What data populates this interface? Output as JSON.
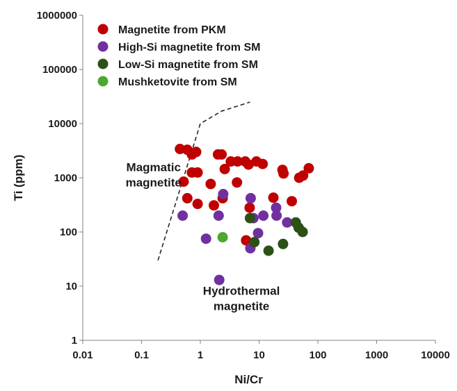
{
  "chart_data": {
    "type": "scatter",
    "title": "",
    "xlabel": "Ni/Cr",
    "ylabel": "Ti (ppm)",
    "xscale": "log",
    "yscale": "log",
    "xlim": [
      0.01,
      10000
    ],
    "ylim": [
      1,
      1000000
    ],
    "grid": false,
    "legend_position": "top-left",
    "x_ticks": [
      0.01,
      0.1,
      1,
      10,
      100,
      1000,
      10000
    ],
    "x_tick_labels": [
      "0.01",
      "0.1",
      "1",
      "10",
      "100",
      "1000",
      "10000"
    ],
    "y_ticks": [
      1,
      10,
      100,
      1000,
      10000,
      100000,
      1000000
    ],
    "y_tick_labels": [
      "1",
      "10",
      "100",
      "1000",
      "10000",
      "100000",
      "1000000"
    ],
    "series": [
      {
        "name": "Magnetite from PKM",
        "color": "#c00000",
        "points": [
          [
            0.45,
            3400
          ],
          [
            0.6,
            3300
          ],
          [
            0.72,
            2700
          ],
          [
            0.85,
            3000
          ],
          [
            0.52,
            850
          ],
          [
            0.72,
            1250
          ],
          [
            0.9,
            1250
          ],
          [
            0.6,
            420
          ],
          [
            0.9,
            330
          ],
          [
            1.7,
            310
          ],
          [
            2.4,
            420
          ],
          [
            1.5,
            770
          ],
          [
            2.0,
            2700
          ],
          [
            2.3,
            2700
          ],
          [
            2.6,
            1450
          ],
          [
            3.3,
            2000
          ],
          [
            4.3,
            2000
          ],
          [
            5.8,
            2000
          ],
          [
            6.6,
            1750
          ],
          [
            9.0,
            2000
          ],
          [
            11.5,
            1800
          ],
          [
            4.2,
            820
          ],
          [
            6.9,
            280
          ],
          [
            6.0,
            70
          ],
          [
            17.5,
            430
          ],
          [
            25.0,
            1400
          ],
          [
            26.0,
            1200
          ],
          [
            36.0,
            370
          ],
          [
            48.0,
            1000
          ],
          [
            56.0,
            1100
          ],
          [
            70.0,
            1500
          ]
        ]
      },
      {
        "name": "High-Si magnetite from SM",
        "color": "#7030a0",
        "points": [
          [
            0.5,
            200
          ],
          [
            1.25,
            75
          ],
          [
            2.05,
            200
          ],
          [
            2.45,
            500
          ],
          [
            2.1,
            13
          ],
          [
            7.2,
            420
          ],
          [
            8.0,
            180
          ],
          [
            7.1,
            50
          ],
          [
            9.6,
            95
          ],
          [
            11.8,
            200
          ],
          [
            19.5,
            280
          ],
          [
            19.8,
            200
          ],
          [
            30.0,
            150
          ]
        ]
      },
      {
        "name": "Low-Si magnetite from SM",
        "color": "#2d5016",
        "points": [
          [
            7.0,
            180
          ],
          [
            8.3,
            65
          ],
          [
            14.5,
            45
          ],
          [
            25.5,
            60
          ],
          [
            42.0,
            150
          ],
          [
            47.0,
            120
          ],
          [
            55.0,
            100
          ]
        ]
      },
      {
        "name": "Mushketovite from SM",
        "color": "#4ea72e",
        "points": [
          [
            2.4,
            80
          ]
        ]
      }
    ],
    "boundary_line": [
      [
        0.19,
        30
      ],
      [
        1.0,
        10000
      ],
      [
        2.3,
        17000
      ],
      [
        7.0,
        25000
      ]
    ],
    "annotations": [
      {
        "lines": [
          "Magmatic",
          "magnetite"
        ],
        "x": 0.16,
        "y": 1050
      },
      {
        "lines": [
          "Hydrothermal",
          "magnetite"
        ],
        "x": 5.0,
        "y": 5.5
      }
    ]
  }
}
